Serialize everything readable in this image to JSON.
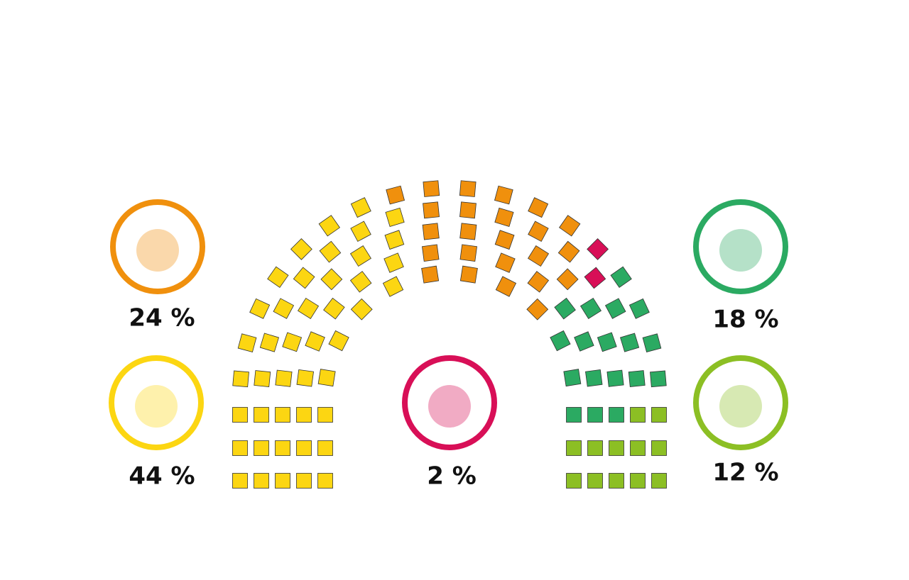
{
  "chart_data": {
    "type": "parliament",
    "values": [
      44,
      24,
      2,
      18,
      12
    ],
    "value_labels": [
      "44 %",
      "24 %",
      "2 %",
      "18 %",
      "12 %"
    ],
    "colors": [
      "#fcd612",
      "#f0900d",
      "#d80f57",
      "#2baa62",
      "#8cbf24"
    ]
  }
}
